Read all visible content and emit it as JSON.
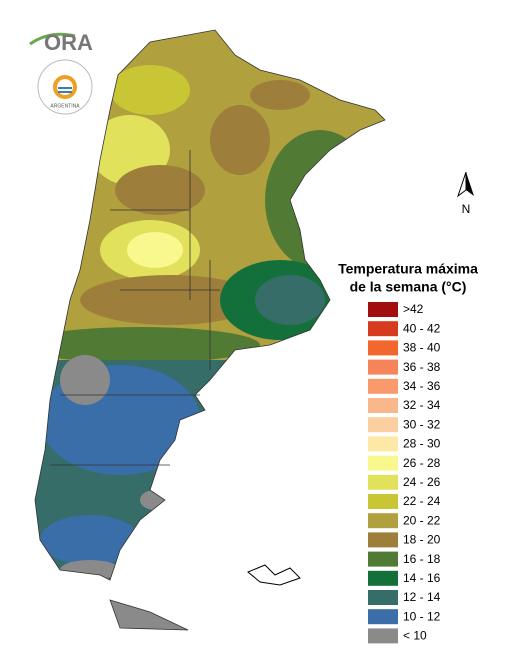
{
  "logo": {
    "name": "ORA",
    "country": "ARGENTINA"
  },
  "north_label": "N",
  "legend": {
    "title_lines": [
      "Temperatura máxima",
      "de la semana (°C)"
    ],
    "items": [
      {
        "label": ">42",
        "color": "#a20d0d"
      },
      {
        "label": "40 - 42",
        "color": "#d63b1f"
      },
      {
        "label": "38 - 40",
        "color": "#f2672e"
      },
      {
        "label": "36 - 38",
        "color": "#f6845a"
      },
      {
        "label": "34 - 36",
        "color": "#f89a6c"
      },
      {
        "label": "32 - 34",
        "color": "#f9b88b"
      },
      {
        "label": "30 - 32",
        "color": "#fbcf9f"
      },
      {
        "label": "28 - 30",
        "color": "#fde8a6"
      },
      {
        "label": "26 - 28",
        "color": "#f8f88e"
      },
      {
        "label": "24 - 26",
        "color": "#e1e15c"
      },
      {
        "label": "22 - 24",
        "color": "#c8c634"
      },
      {
        "label": "20 - 22",
        "color": "#b0a03e"
      },
      {
        "label": "18 - 20",
        "color": "#9d7f3b"
      },
      {
        "label": "16 - 18",
        "color": "#517a35"
      },
      {
        "label": "14 - 16",
        "color": "#14703b"
      },
      {
        "label": "12 - 14",
        "color": "#366d69"
      },
      {
        "label": "10 - 12",
        "color": "#3a6ea8"
      },
      {
        "label": "< 10",
        "color": "#8a8a8a"
      }
    ]
  }
}
